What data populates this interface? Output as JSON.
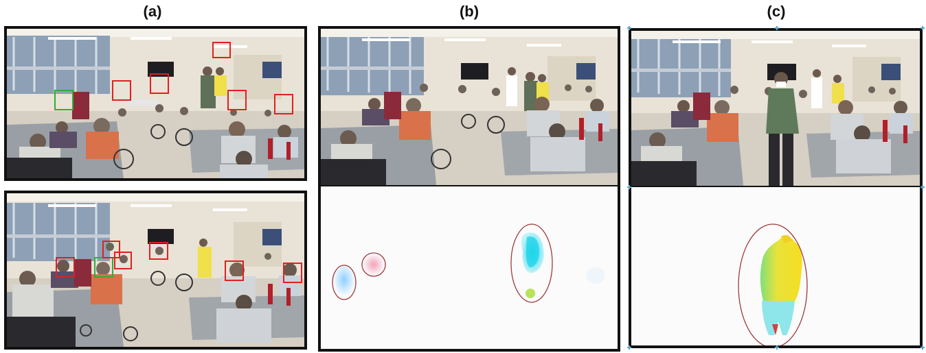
{
  "figure": {
    "panel_labels": {
      "a": "(a)",
      "b": "(b)",
      "c": "(c)"
    }
  },
  "colors": {
    "frame": "#111111",
    "face_box_red": "#e02020",
    "face_box_green": "#2fae3a",
    "flow_cyan": "#22d4e8",
    "flow_yellow": "#f2e02a",
    "flow_pink": "#f2a3b8",
    "flow_blue": "#8fd0ff",
    "ellipse_outline": "#c0504d",
    "tick_marks": "#5aa6c9"
  }
}
